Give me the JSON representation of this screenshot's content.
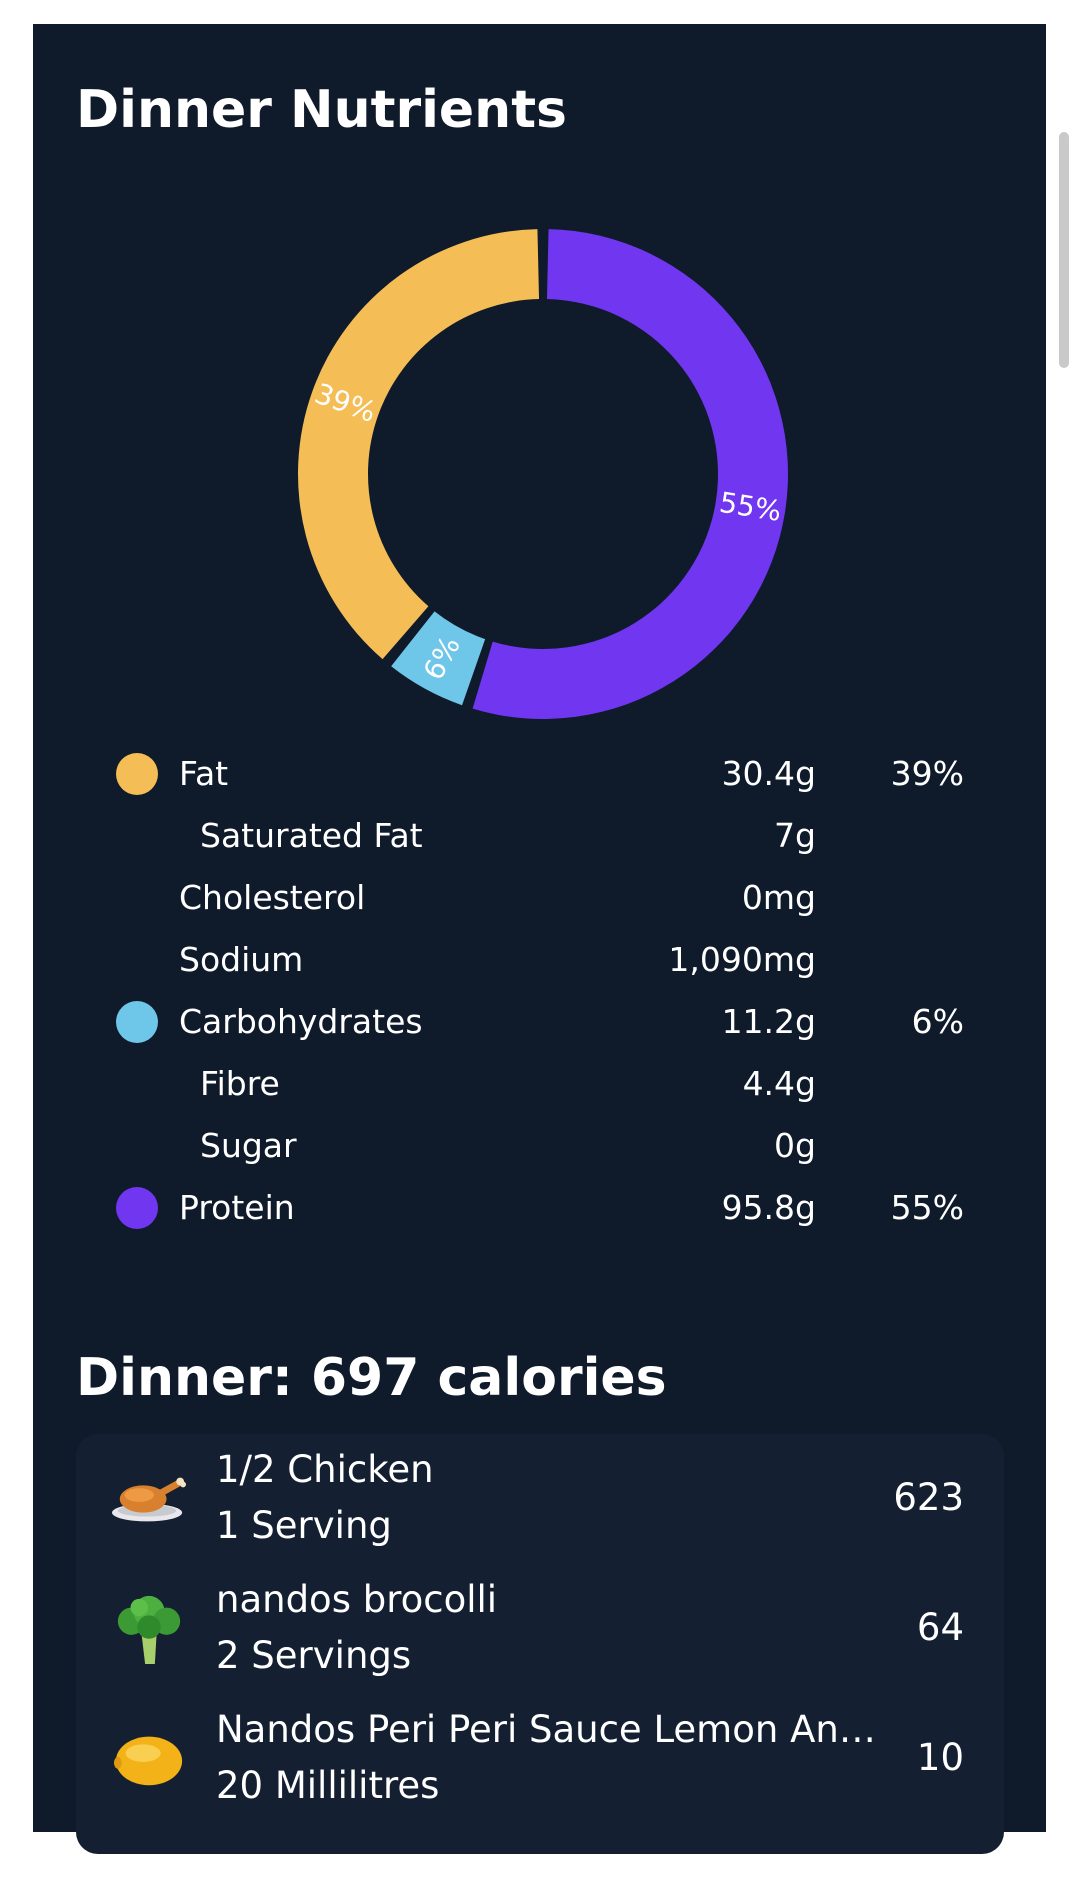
{
  "nutrients_card": {
    "title": "Dinner Nutrients",
    "chart_data": {
      "type": "pie",
      "categories": [
        "Fat",
        "Carbohydrates",
        "Protein"
      ],
      "values": [
        39,
        6,
        55
      ],
      "labels": [
        "39%",
        "6%",
        "55%"
      ],
      "colors": [
        "#f4bd55",
        "#6ec6e8",
        "#7036f0"
      ]
    },
    "rows": [
      {
        "name": "Fat",
        "amount": "30.4g",
        "percent": "39%",
        "color": "#f4bd55"
      },
      {
        "name": "Saturated Fat",
        "amount": "7g"
      },
      {
        "name": "Cholesterol",
        "amount": "0mg"
      },
      {
        "name": "Sodium",
        "amount": "1,090mg"
      },
      {
        "name": "Carbohydrates",
        "amount": "11.2g",
        "percent": "6%",
        "color": "#6ec6e8"
      },
      {
        "name": "Fibre",
        "amount": "4.4g"
      },
      {
        "name": "Sugar",
        "amount": "0g"
      },
      {
        "name": "Protein",
        "amount": "95.8g",
        "percent": "55%",
        "color": "#7036f0"
      }
    ]
  },
  "meal": {
    "title": "Dinner: 697 calories",
    "items": [
      {
        "name": "1/2 Chicken",
        "serving": "1 Serving",
        "calories": "623",
        "icon": "roast-chicken-icon"
      },
      {
        "name": "nandos brocolli",
        "serving": "2 Servings",
        "calories": "64",
        "icon": "broccoli-icon"
      },
      {
        "name": "Nandos Peri Peri Sauce Lemon An…",
        "serving": "20 Millilitres",
        "calories": "10",
        "icon": "lemon-icon"
      }
    ]
  },
  "colors": {
    "panel_background": "#0f1a2a",
    "list_background": "#142032",
    "fat": "#f4bd55",
    "carbohydrates": "#6ec6e8",
    "protein": "#7036f0"
  }
}
